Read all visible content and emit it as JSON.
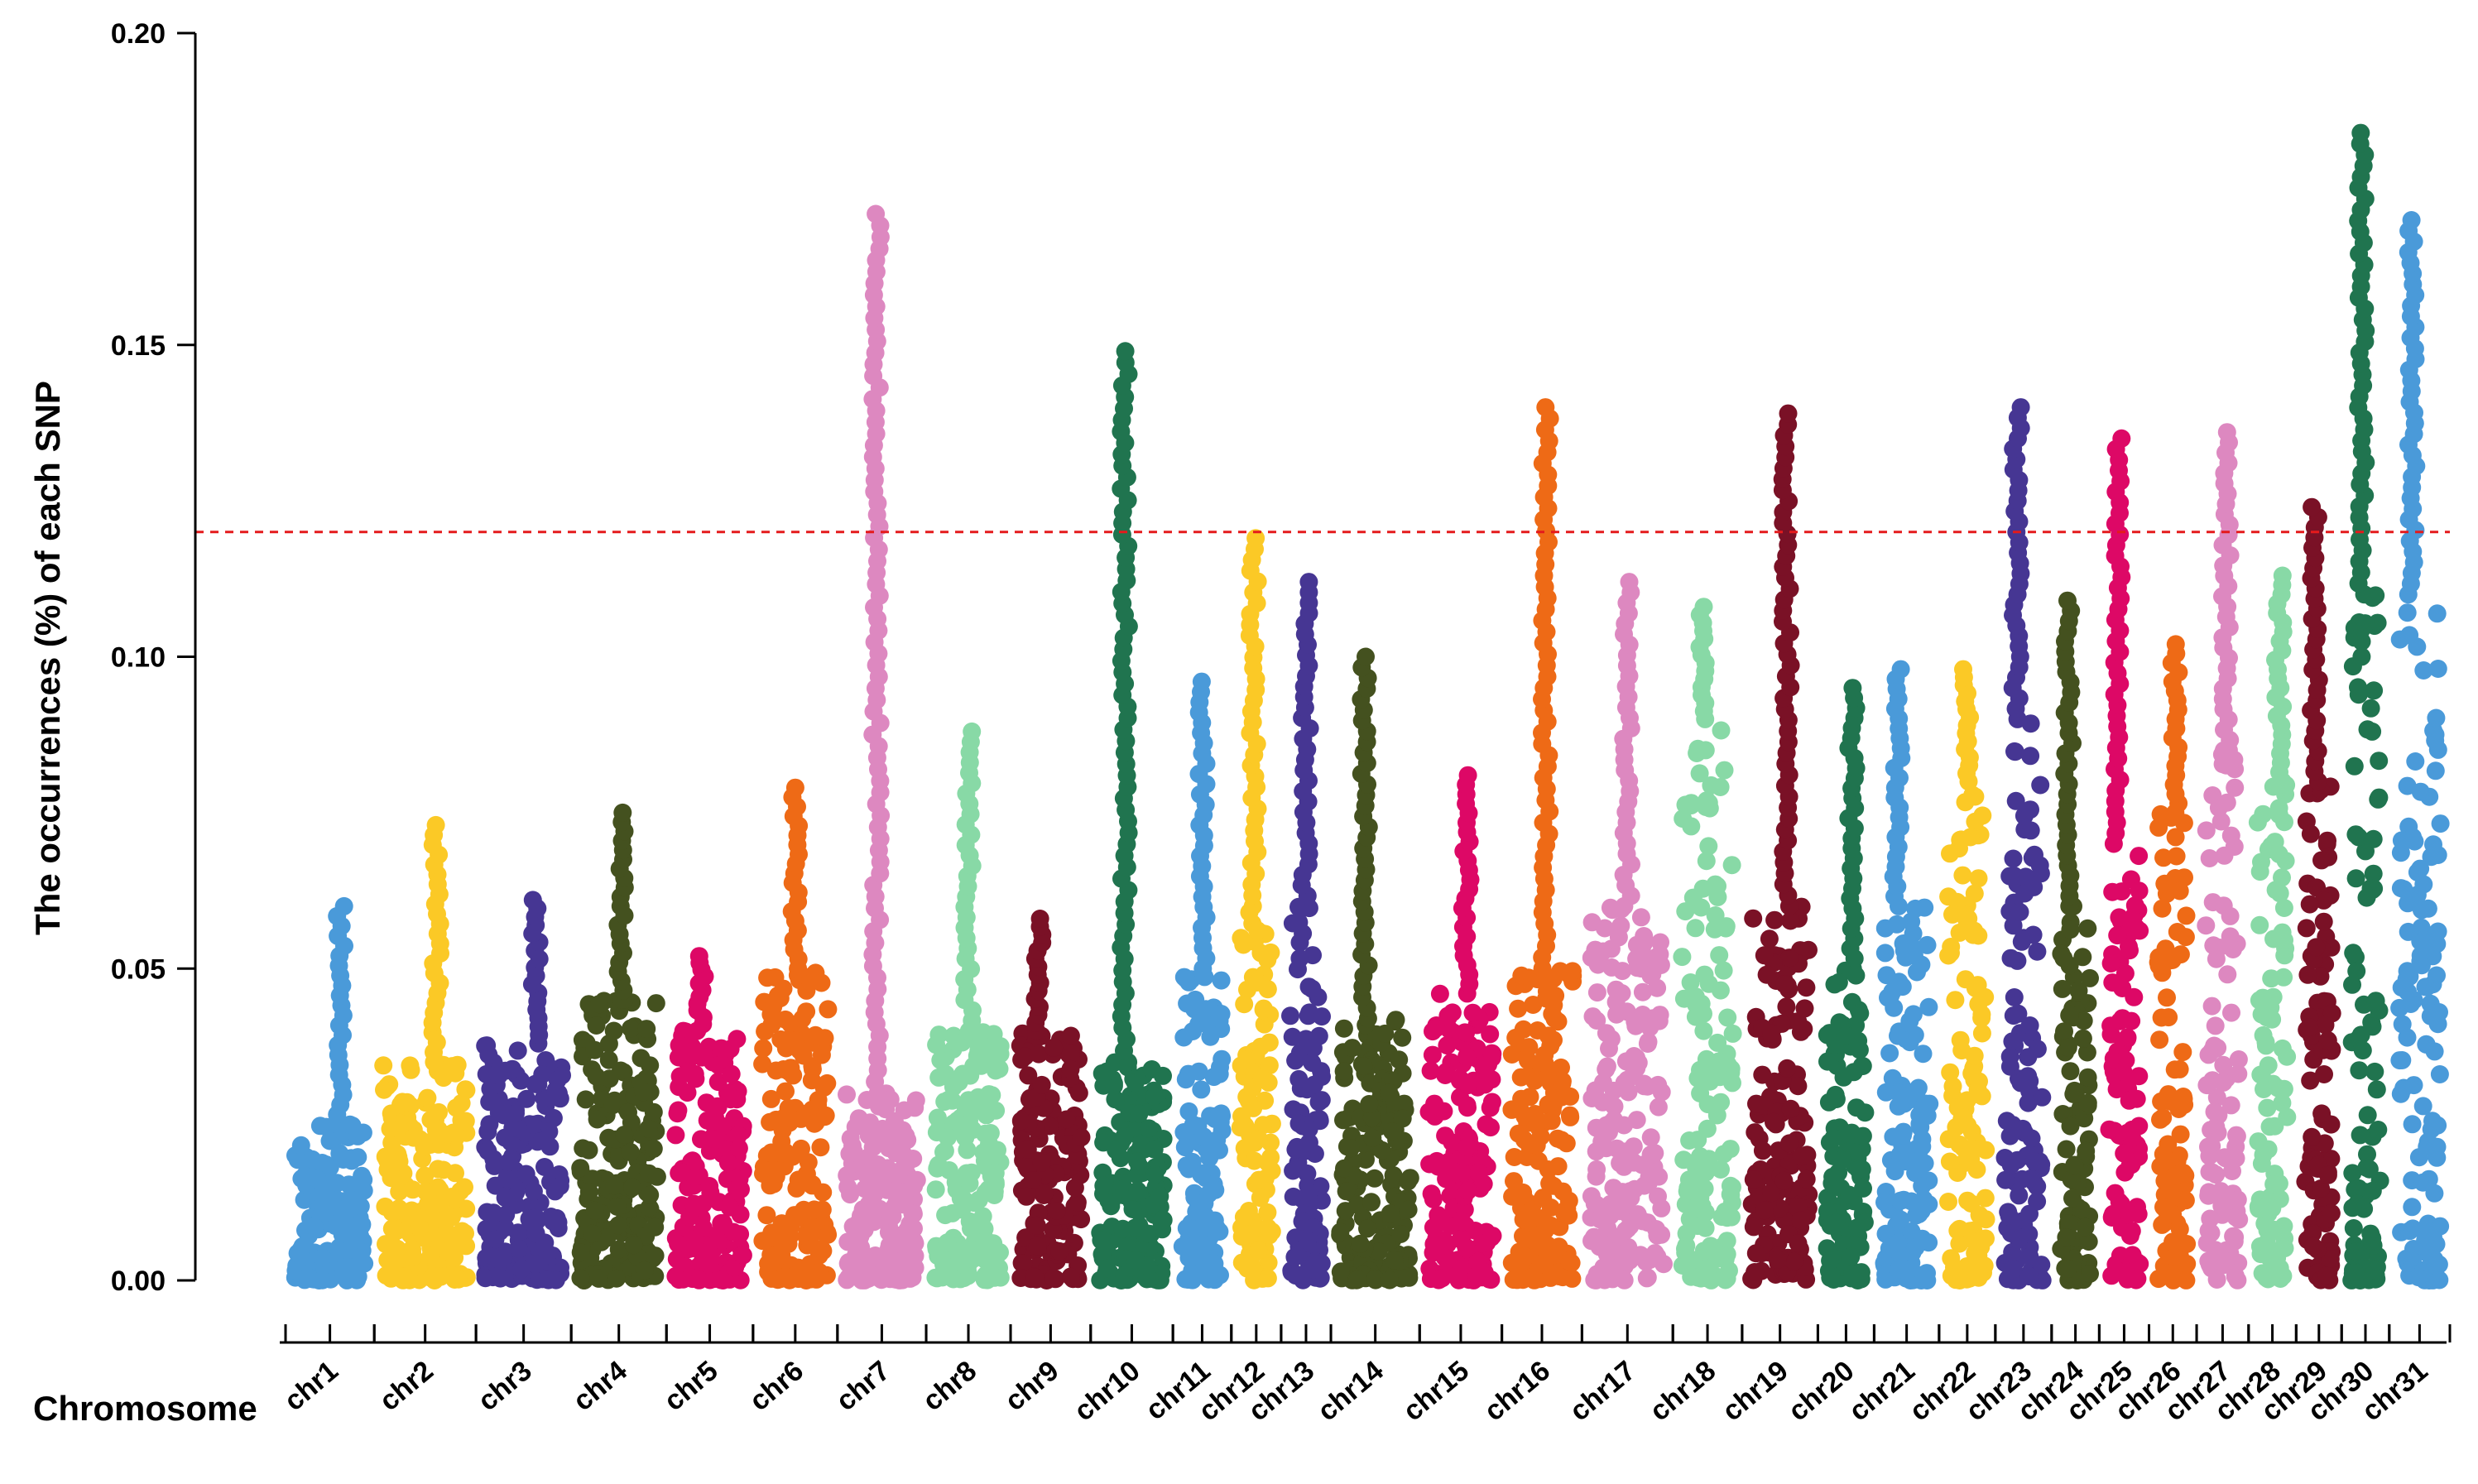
{
  "chart_data": {
    "type": "scatter",
    "title": "",
    "ylabel": "The occurrences (%) of each SNP",
    "xlabel": "Chromosome",
    "ylim": [
      0,
      0.2
    ],
    "yticks": [
      "0.00",
      "0.05",
      "0.10",
      "0.15",
      "0.20"
    ],
    "threshold": {
      "value": 0.12,
      "color": "#e41a1c"
    },
    "grid": false,
    "legend": "none",
    "series": [
      {
        "name": "chr1",
        "color": "#4a9ad9",
        "start": 0.0,
        "end": 0.041,
        "max": 0.06,
        "bulk": 0.025
      },
      {
        "name": "chr2",
        "color": "#fbc926",
        "start": 0.041,
        "end": 0.088,
        "max": 0.073,
        "bulk": 0.035
      },
      {
        "name": "chr3",
        "color": "#463693",
        "start": 0.088,
        "end": 0.132,
        "max": 0.061,
        "bulk": 0.038
      },
      {
        "name": "chr4",
        "color": "#44511f",
        "start": 0.132,
        "end": 0.176,
        "max": 0.075,
        "bulk": 0.045
      },
      {
        "name": "chr5",
        "color": "#dd0866",
        "start": 0.176,
        "end": 0.216,
        "max": 0.052,
        "bulk": 0.04
      },
      {
        "name": "chr6",
        "color": "#ee6a16",
        "start": 0.216,
        "end": 0.255,
        "max": 0.079,
        "bulk": 0.05
      },
      {
        "name": "chr7",
        "color": "#dd88c0",
        "start": 0.255,
        "end": 0.296,
        "max": 0.171,
        "bulk": 0.03
      },
      {
        "name": "chr8",
        "color": "#88d9a6",
        "start": 0.296,
        "end": 0.335,
        "max": 0.088,
        "bulk": 0.04
      },
      {
        "name": "chr9",
        "color": "#7a1126",
        "start": 0.335,
        "end": 0.372,
        "max": 0.058,
        "bulk": 0.04
      },
      {
        "name": "chr10",
        "color": "#20744f",
        "start": 0.372,
        "end": 0.41,
        "max": 0.149,
        "bulk": 0.035
      },
      {
        "name": "chr11",
        "color": "#4a9ad9",
        "start": 0.41,
        "end": 0.437,
        "max": 0.096,
        "bulk": 0.05
      },
      {
        "name": "chr12",
        "color": "#fbc926",
        "start": 0.437,
        "end": 0.46,
        "max": 0.119,
        "bulk": 0.06
      },
      {
        "name": "chr13",
        "color": "#463693",
        "start": 0.46,
        "end": 0.483,
        "max": 0.112,
        "bulk": 0.06
      },
      {
        "name": "chr14",
        "color": "#44511f",
        "start": 0.483,
        "end": 0.524,
        "max": 0.1,
        "bulk": 0.042
      },
      {
        "name": "chr15",
        "color": "#dd0866",
        "start": 0.524,
        "end": 0.562,
        "max": 0.081,
        "bulk": 0.046
      },
      {
        "name": "chr16",
        "color": "#ee6a16",
        "start": 0.562,
        "end": 0.599,
        "max": 0.14,
        "bulk": 0.05
      },
      {
        "name": "chr17",
        "color": "#dd88c0",
        "start": 0.599,
        "end": 0.641,
        "max": 0.112,
        "bulk": 0.06
      },
      {
        "name": "chr18",
        "color": "#88d9a6",
        "start": 0.641,
        "end": 0.673,
        "max": 0.108,
        "bulk": 0.09
      },
      {
        "name": "chr19",
        "color": "#7a1126",
        "start": 0.673,
        "end": 0.708,
        "max": 0.139,
        "bulk": 0.06
      },
      {
        "name": "chr20",
        "color": "#20744f",
        "start": 0.708,
        "end": 0.734,
        "max": 0.095,
        "bulk": 0.05
      },
      {
        "name": "chr21",
        "color": "#4a9ad9",
        "start": 0.734,
        "end": 0.764,
        "max": 0.098,
        "bulk": 0.06
      },
      {
        "name": "chr22",
        "color": "#fbc926",
        "start": 0.764,
        "end": 0.79,
        "max": 0.098,
        "bulk": 0.08
      },
      {
        "name": "chr23",
        "color": "#463693",
        "start": 0.79,
        "end": 0.816,
        "max": 0.14,
        "bulk": 0.09
      },
      {
        "name": "chr24",
        "color": "#44511f",
        "start": 0.816,
        "end": 0.838,
        "max": 0.109,
        "bulk": 0.06
      },
      {
        "name": "chr25",
        "color": "#dd0866",
        "start": 0.838,
        "end": 0.861,
        "max": 0.135,
        "bulk": 0.07
      },
      {
        "name": "chr26",
        "color": "#ee6a16",
        "start": 0.861,
        "end": 0.883,
        "max": 0.102,
        "bulk": 0.075
      },
      {
        "name": "chr27",
        "color": "#dd88c0",
        "start": 0.883,
        "end": 0.907,
        "max": 0.136,
        "bulk": 0.085
      },
      {
        "name": "chr28",
        "color": "#88d9a6",
        "start": 0.907,
        "end": 0.929,
        "max": 0.113,
        "bulk": 0.08
      },
      {
        "name": "chr29",
        "color": "#7a1126",
        "start": 0.929,
        "end": 0.95,
        "max": 0.124,
        "bulk": 0.08
      },
      {
        "name": "chr30",
        "color": "#20744f",
        "start": 0.95,
        "end": 0.972,
        "max": 0.184,
        "bulk": 0.11
      },
      {
        "name": "chr31",
        "color": "#4a9ad9",
        "start": 0.972,
        "end": 1.0,
        "max": 0.17,
        "bulk": 0.11
      }
    ]
  }
}
